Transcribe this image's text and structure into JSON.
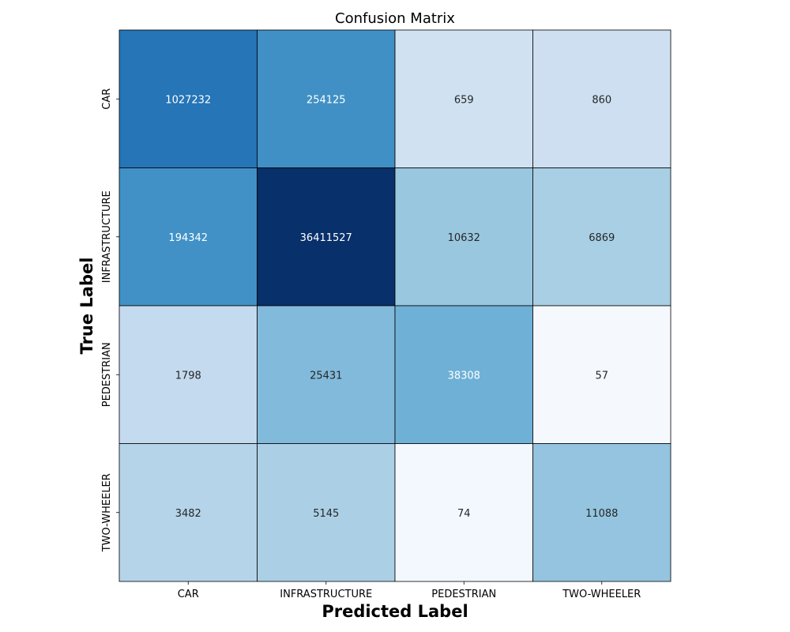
{
  "chart_data": {
    "type": "heatmap",
    "title": "Confusion Matrix",
    "xlabel": "Predicted Label",
    "ylabel": "True Label",
    "x_categories": [
      "CAR",
      "INFRASTRUCTURE",
      "PEDESTRIAN",
      "TWO-WHEELER"
    ],
    "y_categories": [
      "CAR",
      "INFRASTRUCTURE",
      "PEDESTRIAN",
      "TWO-WHEELER"
    ],
    "values": [
      [
        1027232,
        254125,
        659,
        860
      ],
      [
        194342,
        36411527,
        10632,
        6869
      ],
      [
        1798,
        25431,
        38308,
        57
      ],
      [
        3482,
        5145,
        74,
        11088
      ]
    ],
    "colormap": "Blues",
    "grid": false,
    "colorbar": false,
    "cell_colors": [
      [
        "#2575b7",
        "#4090c5",
        "#d0e2f2",
        "#cddff1"
      ],
      [
        "#4191c6",
        "#08306b",
        "#99c7e0",
        "#a9cfe5"
      ],
      [
        "#c4daee",
        "#82badb",
        "#6fb0d7",
        "#f5f9fe"
      ],
      [
        "#b5d4e9",
        "#abd0e6",
        "#f3f8fe",
        "#94c4df"
      ]
    ],
    "cell_text_colors": [
      [
        "#ffffff",
        "#ffffff",
        "#262626",
        "#262626"
      ],
      [
        "#ffffff",
        "#ffffff",
        "#262626",
        "#262626"
      ],
      [
        "#262626",
        "#262626",
        "#ffffff",
        "#262626"
      ],
      [
        "#262626",
        "#262626",
        "#262626",
        "#262626"
      ]
    ]
  }
}
